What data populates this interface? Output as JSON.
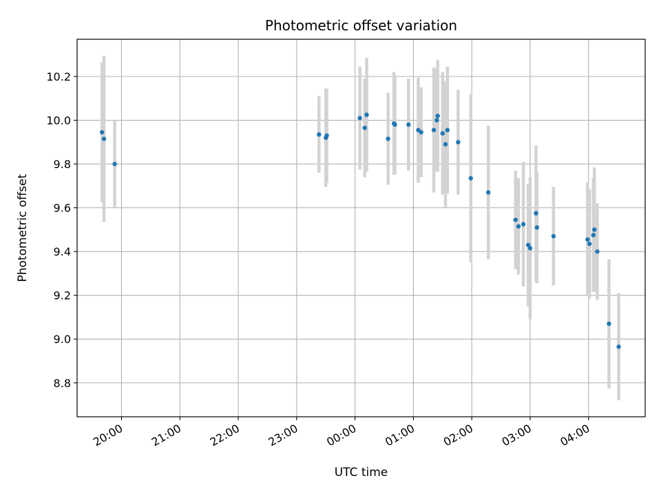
{
  "chart_data": {
    "type": "scatter",
    "title": "Photometric offset variation",
    "xlabel": "UTC time",
    "ylabel": "Photometric offset",
    "x_ticks": [
      "20:00",
      "21:00",
      "22:00",
      "23:00",
      "00:00",
      "01:00",
      "02:00",
      "03:00",
      "04:00"
    ],
    "y_ticks": [
      8.8,
      9.0,
      9.2,
      9.4,
      9.6,
      9.8,
      10.0,
      10.2
    ],
    "xlim_hours": [
      19.24,
      28.97
    ],
    "ylim": [
      8.645,
      10.37
    ],
    "grid": true,
    "colors": {
      "points": "#1f77b4",
      "errorbars": "#d3d3d3",
      "grid": "#b0b0b0"
    },
    "points": [
      {
        "t": "19:40",
        "y": 9.945,
        "err": 0.32
      },
      {
        "t": "19:42",
        "y": 9.915,
        "err": 0.38
      },
      {
        "t": "19:53",
        "y": 9.8,
        "err": 0.2
      },
      {
        "t": "23:23",
        "y": 9.935,
        "err": 0.175
      },
      {
        "t": "23:30",
        "y": 9.92,
        "err": 0.225
      },
      {
        "t": "23:31",
        "y": 9.93,
        "err": 0.215
      },
      {
        "t": "00:05",
        "y": 10.01,
        "err": 0.235
      },
      {
        "t": "00:10",
        "y": 9.965,
        "err": 0.225
      },
      {
        "t": "00:12",
        "y": 10.025,
        "err": 0.26
      },
      {
        "t": "00:34",
        "y": 9.915,
        "err": 0.21
      },
      {
        "t": "00:40",
        "y": 9.985,
        "err": 0.235
      },
      {
        "t": "00:41",
        "y": 9.98,
        "err": 0.225
      },
      {
        "t": "00:55",
        "y": 9.98,
        "err": 0.21
      },
      {
        "t": "01:05",
        "y": 9.955,
        "err": 0.24
      },
      {
        "t": "01:08",
        "y": 9.945,
        "err": 0.205
      },
      {
        "t": "01:21",
        "y": 9.955,
        "err": 0.285
      },
      {
        "t": "01:24",
        "y": 10.0,
        "err": 0.235
      },
      {
        "t": "01:25",
        "y": 10.02,
        "err": 0.255
      },
      {
        "t": "01:30",
        "y": 9.94,
        "err": 0.28
      },
      {
        "t": "01:33",
        "y": 9.89,
        "err": 0.29
      },
      {
        "t": "01:35",
        "y": 9.955,
        "err": 0.29
      },
      {
        "t": "01:46",
        "y": 9.9,
        "err": 0.24
      },
      {
        "t": "01:59",
        "y": 9.735,
        "err": 0.385
      },
      {
        "t": "02:17",
        "y": 9.67,
        "err": 0.305
      },
      {
        "t": "02:45",
        "y": 9.545,
        "err": 0.225
      },
      {
        "t": "02:48",
        "y": 9.515,
        "err": 0.22
      },
      {
        "t": "02:53",
        "y": 9.525,
        "err": 0.285
      },
      {
        "t": "02:58",
        "y": 9.43,
        "err": 0.28
      },
      {
        "t": "03:00",
        "y": 9.415,
        "err": 0.325
      },
      {
        "t": "03:06",
        "y": 9.575,
        "err": 0.31
      },
      {
        "t": "03:07",
        "y": 9.51,
        "err": 0.255
      },
      {
        "t": "03:24",
        "y": 9.47,
        "err": 0.225
      },
      {
        "t": "03:59",
        "y": 9.455,
        "err": 0.26
      },
      {
        "t": "04:01",
        "y": 9.435,
        "err": 0.25
      },
      {
        "t": "04:05",
        "y": 9.475,
        "err": 0.26
      },
      {
        "t": "04:06",
        "y": 9.5,
        "err": 0.285
      },
      {
        "t": "04:09",
        "y": 9.4,
        "err": 0.22
      },
      {
        "t": "04:21",
        "y": 9.07,
        "err": 0.295
      },
      {
        "t": "04:31",
        "y": 8.965,
        "err": 0.245
      }
    ]
  }
}
